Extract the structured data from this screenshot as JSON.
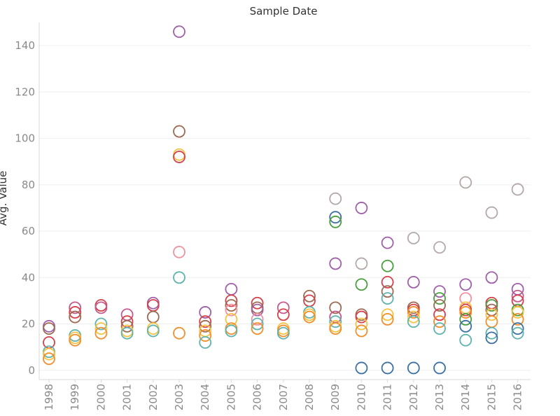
{
  "chart_data": {
    "type": "scatter",
    "title": "Sample Date",
    "xlabel": "",
    "ylabel": "Avg. Value",
    "categories": [
      "1998",
      "1999",
      "2000",
      "2001",
      "2002",
      "2003",
      "2004",
      "2005",
      "2006",
      "2007",
      "2008",
      "2009",
      "2010",
      "2011",
      "2012",
      "2013",
      "2014",
      "2015",
      "2016"
    ],
    "ylim": [
      -4,
      150
    ],
    "yticks": [
      0,
      20,
      40,
      60,
      80,
      100,
      120,
      140
    ],
    "grid": "horizontal",
    "colors": {
      "purple": "#a05fa9",
      "red": "#d6404a",
      "pink": "#f1919c",
      "orange": "#f28e2b",
      "yellow": "#f5c343",
      "teal": "#5fb3ae",
      "green": "#4a9e3f",
      "blue": "#3c6fa3",
      "brown": "#9c6a52",
      "gray": "#b4a8a8",
      "magenta": "#c45a8c"
    },
    "points": [
      {
        "x": "1998",
        "y": 19,
        "color": "purple"
      },
      {
        "x": "1998",
        "y": 18,
        "color": "brown"
      },
      {
        "x": "1998",
        "y": 12,
        "color": "red"
      },
      {
        "x": "1998",
        "y": 8,
        "color": "teal"
      },
      {
        "x": "1998",
        "y": 7,
        "color": "yellow"
      },
      {
        "x": "1998",
        "y": 5,
        "color": "orange"
      },
      {
        "x": "1999",
        "y": 27,
        "color": "magenta"
      },
      {
        "x": "1999",
        "y": 25,
        "color": "red"
      },
      {
        "x": "1999",
        "y": 23,
        "color": "brown"
      },
      {
        "x": "1999",
        "y": 15,
        "color": "teal"
      },
      {
        "x": "1999",
        "y": 14,
        "color": "yellow"
      },
      {
        "x": "1999",
        "y": 13,
        "color": "orange"
      },
      {
        "x": "2000",
        "y": 28,
        "color": "red"
      },
      {
        "x": "2000",
        "y": 27,
        "color": "magenta"
      },
      {
        "x": "2000",
        "y": 20,
        "color": "teal"
      },
      {
        "x": "2000",
        "y": 18,
        "color": "yellow"
      },
      {
        "x": "2000",
        "y": 16,
        "color": "orange"
      },
      {
        "x": "2001",
        "y": 24,
        "color": "magenta"
      },
      {
        "x": "2001",
        "y": 21,
        "color": "red"
      },
      {
        "x": "2001",
        "y": 19,
        "color": "brown"
      },
      {
        "x": "2001",
        "y": 17,
        "color": "yellow"
      },
      {
        "x": "2001",
        "y": 16,
        "color": "teal"
      },
      {
        "x": "2002",
        "y": 29,
        "color": "purple"
      },
      {
        "x": "2002",
        "y": 28,
        "color": "red"
      },
      {
        "x": "2002",
        "y": 23,
        "color": "brown"
      },
      {
        "x": "2002",
        "y": 18,
        "color": "yellow"
      },
      {
        "x": "2002",
        "y": 17,
        "color": "teal"
      },
      {
        "x": "2003",
        "y": 146,
        "color": "purple"
      },
      {
        "x": "2003",
        "y": 103,
        "color": "brown"
      },
      {
        "x": "2003",
        "y": 93,
        "color": "yellow"
      },
      {
        "x": "2003",
        "y": 92,
        "color": "red"
      },
      {
        "x": "2003",
        "y": 51,
        "color": "pink"
      },
      {
        "x": "2003",
        "y": 40,
        "color": "teal"
      },
      {
        "x": "2003",
        "y": 16,
        "color": "orange"
      },
      {
        "x": "2004",
        "y": 25,
        "color": "purple"
      },
      {
        "x": "2004",
        "y": 21,
        "color": "red"
      },
      {
        "x": "2004",
        "y": 19,
        "color": "brown"
      },
      {
        "x": "2004",
        "y": 17,
        "color": "yellow"
      },
      {
        "x": "2004",
        "y": 15,
        "color": "orange"
      },
      {
        "x": "2004",
        "y": 12,
        "color": "teal"
      },
      {
        "x": "2005",
        "y": 35,
        "color": "purple"
      },
      {
        "x": "2005",
        "y": 30,
        "color": "red"
      },
      {
        "x": "2005",
        "y": 28,
        "color": "brown"
      },
      {
        "x": "2005",
        "y": 26,
        "color": "pink"
      },
      {
        "x": "2005",
        "y": 22,
        "color": "yellow"
      },
      {
        "x": "2005",
        "y": 18,
        "color": "orange"
      },
      {
        "x": "2005",
        "y": 17,
        "color": "teal"
      },
      {
        "x": "2006",
        "y": 29,
        "color": "red"
      },
      {
        "x": "2006",
        "y": 27,
        "color": "brown"
      },
      {
        "x": "2006",
        "y": 26,
        "color": "purple"
      },
      {
        "x": "2006",
        "y": 22,
        "color": "pink"
      },
      {
        "x": "2006",
        "y": 20,
        "color": "teal"
      },
      {
        "x": "2006",
        "y": 18,
        "color": "orange"
      },
      {
        "x": "2007",
        "y": 27,
        "color": "magenta"
      },
      {
        "x": "2007",
        "y": 24,
        "color": "red"
      },
      {
        "x": "2007",
        "y": 18,
        "color": "yellow"
      },
      {
        "x": "2007",
        "y": 17,
        "color": "orange"
      },
      {
        "x": "2007",
        "y": 16,
        "color": "teal"
      },
      {
        "x": "2008",
        "y": 32,
        "color": "brown"
      },
      {
        "x": "2008",
        "y": 30,
        "color": "red"
      },
      {
        "x": "2008",
        "y": 25,
        "color": "teal"
      },
      {
        "x": "2008",
        "y": 24,
        "color": "yellow"
      },
      {
        "x": "2008",
        "y": 23,
        "color": "orange"
      },
      {
        "x": "2009",
        "y": 74,
        "color": "gray"
      },
      {
        "x": "2009",
        "y": 66,
        "color": "blue"
      },
      {
        "x": "2009",
        "y": 64,
        "color": "green"
      },
      {
        "x": "2009",
        "y": 46,
        "color": "purple"
      },
      {
        "x": "2009",
        "y": 27,
        "color": "brown"
      },
      {
        "x": "2009",
        "y": 23,
        "color": "magenta"
      },
      {
        "x": "2009",
        "y": 21,
        "color": "teal"
      },
      {
        "x": "2009",
        "y": 19,
        "color": "yellow"
      },
      {
        "x": "2009",
        "y": 18,
        "color": "orange"
      },
      {
        "x": "2010",
        "y": 70,
        "color": "purple"
      },
      {
        "x": "2010",
        "y": 46,
        "color": "gray"
      },
      {
        "x": "2010",
        "y": 37,
        "color": "green"
      },
      {
        "x": "2010",
        "y": 24,
        "color": "brown"
      },
      {
        "x": "2010",
        "y": 23,
        "color": "red"
      },
      {
        "x": "2010",
        "y": 20,
        "color": "yellow"
      },
      {
        "x": "2010",
        "y": 17,
        "color": "orange"
      },
      {
        "x": "2010",
        "y": 1,
        "color": "blue"
      },
      {
        "x": "2011",
        "y": 55,
        "color": "purple"
      },
      {
        "x": "2011",
        "y": 45,
        "color": "green"
      },
      {
        "x": "2011",
        "y": 38,
        "color": "red"
      },
      {
        "x": "2011",
        "y": 34,
        "color": "brown"
      },
      {
        "x": "2011",
        "y": 31,
        "color": "teal"
      },
      {
        "x": "2011",
        "y": 24,
        "color": "yellow"
      },
      {
        "x": "2011",
        "y": 22,
        "color": "orange"
      },
      {
        "x": "2011",
        "y": 1,
        "color": "blue"
      },
      {
        "x": "2012",
        "y": 57,
        "color": "gray"
      },
      {
        "x": "2012",
        "y": 38,
        "color": "purple"
      },
      {
        "x": "2012",
        "y": 27,
        "color": "brown"
      },
      {
        "x": "2012",
        "y": 26,
        "color": "red"
      },
      {
        "x": "2012",
        "y": 25,
        "color": "orange"
      },
      {
        "x": "2012",
        "y": 23,
        "color": "yellow"
      },
      {
        "x": "2012",
        "y": 21,
        "color": "teal"
      },
      {
        "x": "2012",
        "y": 1,
        "color": "blue"
      },
      {
        "x": "2013",
        "y": 53,
        "color": "gray"
      },
      {
        "x": "2013",
        "y": 34,
        "color": "purple"
      },
      {
        "x": "2013",
        "y": 31,
        "color": "green"
      },
      {
        "x": "2013",
        "y": 28,
        "color": "brown"
      },
      {
        "x": "2013",
        "y": 24,
        "color": "red"
      },
      {
        "x": "2013",
        "y": 21,
        "color": "orange"
      },
      {
        "x": "2013",
        "y": 18,
        "color": "teal"
      },
      {
        "x": "2013",
        "y": 1,
        "color": "blue"
      },
      {
        "x": "2014",
        "y": 81,
        "color": "gray"
      },
      {
        "x": "2014",
        "y": 37,
        "color": "purple"
      },
      {
        "x": "2014",
        "y": 31,
        "color": "pink"
      },
      {
        "x": "2014",
        "y": 27,
        "color": "yellow"
      },
      {
        "x": "2014",
        "y": 26,
        "color": "red"
      },
      {
        "x": "2014",
        "y": 25,
        "color": "orange"
      },
      {
        "x": "2014",
        "y": 22,
        "color": "green"
      },
      {
        "x": "2014",
        "y": 19,
        "color": "blue"
      },
      {
        "x": "2014",
        "y": 13,
        "color": "teal"
      },
      {
        "x": "2015",
        "y": 68,
        "color": "gray"
      },
      {
        "x": "2015",
        "y": 40,
        "color": "purple"
      },
      {
        "x": "2015",
        "y": 29,
        "color": "red"
      },
      {
        "x": "2015",
        "y": 28,
        "color": "green"
      },
      {
        "x": "2015",
        "y": 26,
        "color": "brown"
      },
      {
        "x": "2015",
        "y": 24,
        "color": "yellow"
      },
      {
        "x": "2015",
        "y": 21,
        "color": "orange"
      },
      {
        "x": "2015",
        "y": 16,
        "color": "teal"
      },
      {
        "x": "2015",
        "y": 14,
        "color": "blue"
      },
      {
        "x": "2016",
        "y": 78,
        "color": "gray"
      },
      {
        "x": "2016",
        "y": 35,
        "color": "purple"
      },
      {
        "x": "2016",
        "y": 32,
        "color": "magenta"
      },
      {
        "x": "2016",
        "y": 30,
        "color": "red"
      },
      {
        "x": "2016",
        "y": 26,
        "color": "green"
      },
      {
        "x": "2016",
        "y": 25,
        "color": "yellow"
      },
      {
        "x": "2016",
        "y": 22,
        "color": "orange"
      },
      {
        "x": "2016",
        "y": 18,
        "color": "blue"
      },
      {
        "x": "2016",
        "y": 16,
        "color": "teal"
      }
    ]
  }
}
